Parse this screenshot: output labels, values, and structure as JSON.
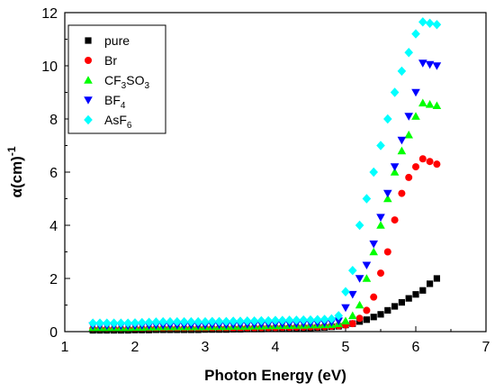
{
  "chart_data": {
    "type": "scatter",
    "title": "",
    "xlabel": "Photon Energy (eV)",
    "ylabel": "α(cm)",
    "ylabel_sup": "-1",
    "xlim": [
      1,
      7
    ],
    "ylim": [
      0,
      12
    ],
    "xticks": [
      1,
      2,
      3,
      4,
      5,
      6,
      7
    ],
    "yticks": [
      0,
      2,
      4,
      6,
      8,
      10,
      12
    ],
    "legend_position": "top-left",
    "series": [
      {
        "name": "pure",
        "label": "pure",
        "label_sub": "",
        "label_tail": "",
        "marker": "square",
        "color": "#000000",
        "x": [
          1.4,
          1.5,
          1.6,
          1.7,
          1.8,
          1.9,
          2.0,
          2.1,
          2.2,
          2.3,
          2.4,
          2.5,
          2.6,
          2.7,
          2.8,
          2.9,
          3.0,
          3.1,
          3.2,
          3.3,
          3.4,
          3.5,
          3.6,
          3.7,
          3.8,
          3.9,
          4.0,
          4.1,
          4.2,
          4.3,
          4.4,
          4.5,
          4.6,
          4.7,
          4.8,
          4.9,
          5.0,
          5.1,
          5.2,
          5.3,
          5.4,
          5.5,
          5.6,
          5.7,
          5.8,
          5.9,
          6.0,
          6.1,
          6.2,
          6.3
        ],
        "y": [
          0.05,
          0.05,
          0.05,
          0.05,
          0.05,
          0.05,
          0.06,
          0.06,
          0.06,
          0.07,
          0.07,
          0.07,
          0.07,
          0.07,
          0.07,
          0.07,
          0.08,
          0.08,
          0.08,
          0.08,
          0.09,
          0.09,
          0.1,
          0.1,
          0.1,
          0.11,
          0.11,
          0.12,
          0.12,
          0.13,
          0.13,
          0.14,
          0.15,
          0.16,
          0.18,
          0.2,
          0.25,
          0.3,
          0.38,
          0.45,
          0.55,
          0.65,
          0.8,
          0.95,
          1.1,
          1.25,
          1.4,
          1.55,
          1.8,
          2.0
        ]
      },
      {
        "name": "Br",
        "label": "Br",
        "label_sub": "",
        "label_tail": "",
        "marker": "circle",
        "color": "#ff0000",
        "x": [
          1.4,
          1.5,
          1.6,
          1.7,
          1.8,
          1.9,
          2.0,
          2.1,
          2.2,
          2.3,
          2.4,
          2.5,
          2.6,
          2.7,
          2.8,
          2.9,
          3.0,
          3.1,
          3.2,
          3.3,
          3.4,
          3.5,
          3.6,
          3.7,
          3.8,
          3.9,
          4.0,
          4.1,
          4.2,
          4.3,
          4.4,
          4.5,
          4.6,
          4.7,
          4.8,
          4.9,
          5.0,
          5.1,
          5.2,
          5.3,
          5.4,
          5.5,
          5.6,
          5.7,
          5.8,
          5.9,
          6.0,
          6.1,
          6.2,
          6.3
        ],
        "y": [
          0.1,
          0.1,
          0.1,
          0.1,
          0.1,
          0.1,
          0.11,
          0.11,
          0.12,
          0.12,
          0.12,
          0.12,
          0.12,
          0.12,
          0.12,
          0.12,
          0.12,
          0.13,
          0.13,
          0.13,
          0.13,
          0.14,
          0.14,
          0.14,
          0.15,
          0.15,
          0.15,
          0.16,
          0.16,
          0.17,
          0.17,
          0.18,
          0.18,
          0.19,
          0.2,
          0.22,
          0.25,
          0.3,
          0.5,
          0.8,
          1.3,
          2.2,
          3.0,
          4.2,
          5.2,
          5.8,
          6.2,
          6.5,
          6.4,
          6.3
        ]
      },
      {
        "name": "CF3SO3",
        "label": "CF",
        "label_sub": "3",
        "label_tail": "SO",
        "label_sub2": "3",
        "marker": "triangle-up",
        "color": "#00ff00",
        "x": [
          1.4,
          1.5,
          1.6,
          1.7,
          1.8,
          1.9,
          2.0,
          2.1,
          2.2,
          2.3,
          2.4,
          2.5,
          2.6,
          2.7,
          2.8,
          2.9,
          3.0,
          3.1,
          3.2,
          3.3,
          3.4,
          3.5,
          3.6,
          3.7,
          3.8,
          3.9,
          4.0,
          4.1,
          4.2,
          4.3,
          4.4,
          4.5,
          4.6,
          4.7,
          4.8,
          4.9,
          5.0,
          5.1,
          5.2,
          5.3,
          5.4,
          5.5,
          5.6,
          5.7,
          5.8,
          5.9,
          6.0,
          6.1,
          6.2,
          6.3
        ],
        "y": [
          0.15,
          0.15,
          0.15,
          0.15,
          0.15,
          0.15,
          0.16,
          0.16,
          0.17,
          0.17,
          0.18,
          0.18,
          0.18,
          0.18,
          0.18,
          0.18,
          0.18,
          0.19,
          0.19,
          0.19,
          0.2,
          0.2,
          0.2,
          0.21,
          0.21,
          0.22,
          0.22,
          0.23,
          0.23,
          0.24,
          0.24,
          0.25,
          0.25,
          0.26,
          0.27,
          0.3,
          0.4,
          0.6,
          1.0,
          2.0,
          3.0,
          4.0,
          5.0,
          6.0,
          6.8,
          7.4,
          8.1,
          8.6,
          8.55,
          8.5
        ]
      },
      {
        "name": "BF4",
        "label": "BF",
        "label_sub": "4",
        "label_tail": "",
        "marker": "triangle-down",
        "color": "#0000ff",
        "x": [
          1.4,
          1.5,
          1.6,
          1.7,
          1.8,
          1.9,
          2.0,
          2.1,
          2.2,
          2.3,
          2.4,
          2.5,
          2.6,
          2.7,
          2.8,
          2.9,
          3.0,
          3.1,
          3.2,
          3.3,
          3.4,
          3.5,
          3.6,
          3.7,
          3.8,
          3.9,
          4.0,
          4.1,
          4.2,
          4.3,
          4.4,
          4.5,
          4.6,
          4.7,
          4.8,
          4.9,
          5.0,
          5.1,
          5.2,
          5.3,
          5.4,
          5.5,
          5.6,
          5.7,
          5.8,
          5.9,
          6.0,
          6.1,
          6.2,
          6.3
        ],
        "y": [
          0.22,
          0.22,
          0.22,
          0.22,
          0.22,
          0.22,
          0.22,
          0.23,
          0.23,
          0.24,
          0.24,
          0.24,
          0.24,
          0.24,
          0.24,
          0.24,
          0.24,
          0.25,
          0.25,
          0.25,
          0.26,
          0.26,
          0.27,
          0.27,
          0.28,
          0.28,
          0.29,
          0.29,
          0.3,
          0.3,
          0.31,
          0.31,
          0.32,
          0.33,
          0.35,
          0.4,
          0.9,
          1.4,
          2.0,
          2.5,
          3.3,
          4.3,
          5.2,
          6.2,
          7.2,
          8.1,
          9.0,
          10.1,
          10.05,
          10.0
        ]
      },
      {
        "name": "AsF6",
        "label": "AsF",
        "label_sub": "6",
        "label_tail": "",
        "marker": "diamond",
        "color": "#00ffff",
        "x": [
          1.4,
          1.5,
          1.6,
          1.7,
          1.8,
          1.9,
          2.0,
          2.1,
          2.2,
          2.3,
          2.4,
          2.5,
          2.6,
          2.7,
          2.8,
          2.9,
          3.0,
          3.1,
          3.2,
          3.3,
          3.4,
          3.5,
          3.6,
          3.7,
          3.8,
          3.9,
          4.0,
          4.1,
          4.2,
          4.3,
          4.4,
          4.5,
          4.6,
          4.7,
          4.8,
          4.9,
          5.0,
          5.1,
          5.2,
          5.3,
          5.4,
          5.5,
          5.6,
          5.7,
          5.8,
          5.9,
          6.0,
          6.1,
          6.2,
          6.3
        ],
        "y": [
          0.32,
          0.32,
          0.32,
          0.32,
          0.32,
          0.32,
          0.33,
          0.34,
          0.35,
          0.36,
          0.37,
          0.37,
          0.37,
          0.37,
          0.37,
          0.37,
          0.37,
          0.38,
          0.38,
          0.38,
          0.39,
          0.39,
          0.4,
          0.4,
          0.41,
          0.41,
          0.42,
          0.42,
          0.43,
          0.43,
          0.44,
          0.44,
          0.45,
          0.46,
          0.48,
          0.6,
          1.5,
          2.3,
          4.0,
          5.0,
          6.0,
          7.0,
          8.0,
          9.0,
          9.8,
          10.5,
          11.2,
          11.65,
          11.6,
          11.55
        ]
      }
    ]
  }
}
